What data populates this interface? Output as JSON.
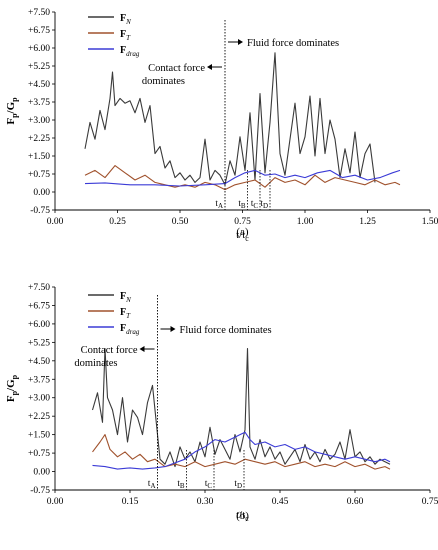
{
  "chart_data": [
    {
      "type": "line",
      "panel_label": "(a)",
      "ylabel": "Fp/Gp",
      "xlabel": "t/tc",
      "xlim": [
        0.0,
        1.5
      ],
      "ylim": [
        -0.75,
        7.5
      ],
      "xticks": [
        "0.00",
        "0.25",
        "0.50",
        "0.75",
        "1.00",
        "1.25",
        "1.50"
      ],
      "yticks": [
        "-0.75",
        "0.00",
        "+0.75",
        "+1.50",
        "+2.25",
        "+3.00",
        "+3.75",
        "+4.50",
        "+5.25",
        "+6.00",
        "+6.75",
        "+7.50"
      ],
      "legend_position": "top-left",
      "divider_x": 0.68,
      "annotations": {
        "left": "Contact force dominates",
        "right": "Fluid force dominates"
      },
      "markers": [
        {
          "label": "tA",
          "x": 0.68
        },
        {
          "label": "tB",
          "x": 0.77
        },
        {
          "label": "tC",
          "x": 0.82
        },
        {
          "label": "tD",
          "x": 0.86
        }
      ],
      "series": [
        {
          "name": "FN",
          "legend_sub": "N",
          "color": "#3a3a3a",
          "x": [
            0.12,
            0.14,
            0.16,
            0.18,
            0.2,
            0.22,
            0.23,
            0.24,
            0.26,
            0.28,
            0.3,
            0.32,
            0.34,
            0.36,
            0.38,
            0.4,
            0.42,
            0.44,
            0.46,
            0.48,
            0.5,
            0.52,
            0.54,
            0.56,
            0.58,
            0.6,
            0.62,
            0.64,
            0.66,
            0.68,
            0.7,
            0.72,
            0.74,
            0.76,
            0.78,
            0.8,
            0.82,
            0.84,
            0.86,
            0.88,
            0.9,
            0.92,
            0.94,
            0.96,
            0.98,
            1.0,
            1.02,
            1.04,
            1.06,
            1.08,
            1.1,
            1.12,
            1.14,
            1.16,
            1.18,
            1.2,
            1.22,
            1.24,
            1.26,
            1.28
          ],
          "y": [
            1.8,
            2.9,
            2.2,
            3.4,
            2.6,
            3.9,
            5.0,
            3.6,
            3.9,
            3.7,
            3.8,
            3.3,
            3.9,
            2.9,
            3.6,
            1.6,
            1.9,
            1.0,
            1.3,
            0.6,
            0.8,
            0.5,
            0.7,
            0.4,
            0.6,
            2.2,
            0.5,
            0.9,
            0.7,
            0.3,
            1.3,
            0.7,
            2.3,
            0.9,
            3.3,
            0.5,
            4.1,
            0.8,
            2.9,
            5.8,
            1.6,
            0.7,
            2.2,
            3.7,
            1.6,
            2.3,
            4.0,
            1.5,
            3.9,
            1.6,
            3.0,
            2.2,
            0.6,
            1.8,
            0.8,
            2.5,
            0.6,
            1.6,
            2.0,
            0.4
          ]
        },
        {
          "name": "FT",
          "legend_sub": "T",
          "color": "#a0522d",
          "x": [
            0.12,
            0.16,
            0.2,
            0.24,
            0.28,
            0.32,
            0.36,
            0.4,
            0.44,
            0.48,
            0.52,
            0.56,
            0.6,
            0.64,
            0.68,
            0.72,
            0.76,
            0.8,
            0.84,
            0.88,
            0.92,
            0.96,
            1.0,
            1.04,
            1.08,
            1.12,
            1.16,
            1.2,
            1.24,
            1.28,
            1.32,
            1.36,
            1.38
          ],
          "y": [
            0.7,
            0.9,
            0.6,
            1.1,
            0.8,
            0.5,
            0.7,
            0.4,
            0.3,
            0.2,
            0.3,
            0.2,
            0.4,
            0.3,
            0.1,
            0.3,
            0.4,
            0.5,
            0.2,
            0.6,
            0.4,
            0.5,
            0.3,
            0.7,
            0.4,
            0.6,
            0.5,
            0.4,
            0.3,
            0.5,
            0.3,
            0.4,
            0.3
          ]
        },
        {
          "name": "Fdrag",
          "legend_sub": "drag",
          "color": "#3b3bd6",
          "x": [
            0.12,
            0.2,
            0.3,
            0.4,
            0.5,
            0.6,
            0.68,
            0.72,
            0.76,
            0.8,
            0.84,
            0.88,
            0.92,
            0.96,
            1.0,
            1.05,
            1.1,
            1.15,
            1.2,
            1.25,
            1.3,
            1.35,
            1.38
          ],
          "y": [
            0.35,
            0.38,
            0.3,
            0.3,
            0.25,
            0.3,
            0.35,
            0.6,
            0.8,
            0.9,
            0.7,
            0.75,
            0.6,
            0.7,
            0.6,
            0.8,
            0.9,
            0.6,
            0.7,
            0.5,
            0.6,
            0.8,
            0.9
          ]
        }
      ]
    },
    {
      "type": "line",
      "panel_label": "(b)",
      "ylabel": "Fp/Gp",
      "xlabel": "t/tc",
      "xlim": [
        0.0,
        0.75
      ],
      "ylim": [
        -0.75,
        7.5
      ],
      "xticks": [
        "0.00",
        "0.15",
        "0.30",
        "0.45",
        "0.60",
        "0.75"
      ],
      "yticks": [
        "-0.75",
        "0.00",
        "+0.75",
        "+1.50",
        "+2.25",
        "+3.00",
        "+3.75",
        "+4.50",
        "+5.25",
        "+6.00",
        "+6.75",
        "+7.50"
      ],
      "legend_position": "top-left",
      "divider_x": 0.205,
      "annotations": {
        "left": "Contact force dominates",
        "right": "Fluid force dominates"
      },
      "markers": [
        {
          "label": "tA",
          "x": 0.205
        },
        {
          "label": "tB",
          "x": 0.263
        },
        {
          "label": "tC",
          "x": 0.318
        },
        {
          "label": "tD",
          "x": 0.378
        }
      ],
      "series": [
        {
          "name": "FN",
          "legend_sub": "N",
          "color": "#3a3a3a",
          "x": [
            0.075,
            0.085,
            0.095,
            0.1,
            0.105,
            0.115,
            0.125,
            0.135,
            0.145,
            0.155,
            0.165,
            0.175,
            0.185,
            0.195,
            0.2,
            0.21,
            0.22,
            0.23,
            0.24,
            0.25,
            0.26,
            0.27,
            0.28,
            0.29,
            0.3,
            0.31,
            0.32,
            0.33,
            0.34,
            0.35,
            0.36,
            0.37,
            0.38,
            0.385,
            0.39,
            0.4,
            0.41,
            0.42,
            0.43,
            0.44,
            0.45,
            0.46,
            0.47,
            0.48,
            0.49,
            0.5,
            0.51,
            0.52,
            0.53,
            0.54,
            0.55,
            0.56,
            0.57,
            0.58,
            0.59,
            0.6,
            0.61,
            0.62,
            0.63,
            0.64,
            0.65,
            0.66,
            0.67
          ],
          "y": [
            2.5,
            3.2,
            2.0,
            5.0,
            3.0,
            2.5,
            1.5,
            3.0,
            1.2,
            2.5,
            2.2,
            1.5,
            2.8,
            3.5,
            2.5,
            0.5,
            0.3,
            0.8,
            0.2,
            1.0,
            0.5,
            0.8,
            0.4,
            1.2,
            0.6,
            1.8,
            0.7,
            1.3,
            0.9,
            0.5,
            1.5,
            0.8,
            1.7,
            5.0,
            1.0,
            0.5,
            1.3,
            0.6,
            1.0,
            0.5,
            0.8,
            0.3,
            0.6,
            0.9,
            0.4,
            1.1,
            0.5,
            0.8,
            0.4,
            0.9,
            0.5,
            0.7,
            1.2,
            0.5,
            1.7,
            0.6,
            0.8,
            0.4,
            0.6,
            0.3,
            0.5,
            0.4,
            0.3
          ]
        },
        {
          "name": "FT",
          "legend_sub": "T",
          "color": "#a0522d",
          "x": [
            0.075,
            0.09,
            0.1,
            0.11,
            0.125,
            0.14,
            0.155,
            0.17,
            0.185,
            0.2,
            0.22,
            0.24,
            0.26,
            0.28,
            0.3,
            0.32,
            0.34,
            0.36,
            0.38,
            0.4,
            0.42,
            0.44,
            0.46,
            0.48,
            0.5,
            0.52,
            0.54,
            0.56,
            0.58,
            0.6,
            0.62,
            0.64,
            0.66,
            0.67
          ],
          "y": [
            0.8,
            1.2,
            1.5,
            0.9,
            0.6,
            0.8,
            0.5,
            0.7,
            0.4,
            0.5,
            0.2,
            0.3,
            0.2,
            0.4,
            0.2,
            0.3,
            0.4,
            0.3,
            0.5,
            0.4,
            0.3,
            0.4,
            0.2,
            0.3,
            0.4,
            0.2,
            0.3,
            0.2,
            0.4,
            0.2,
            0.3,
            0.1,
            0.2,
            0.1
          ]
        },
        {
          "name": "Fdrag",
          "legend_sub": "drag",
          "color": "#3b3bd6",
          "x": [
            0.075,
            0.1,
            0.125,
            0.15,
            0.175,
            0.2,
            0.22,
            0.24,
            0.26,
            0.28,
            0.3,
            0.32,
            0.34,
            0.36,
            0.37,
            0.38,
            0.39,
            0.4,
            0.42,
            0.44,
            0.46,
            0.48,
            0.5,
            0.52,
            0.54,
            0.56,
            0.58,
            0.6,
            0.62,
            0.64,
            0.66,
            0.67
          ],
          "y": [
            0.25,
            0.2,
            0.1,
            0.15,
            0.1,
            0.15,
            0.2,
            0.35,
            0.5,
            0.8,
            1.0,
            1.3,
            1.2,
            1.4,
            1.5,
            1.6,
            1.3,
            1.1,
            1.2,
            1.0,
            1.1,
            0.9,
            1.0,
            0.8,
            0.7,
            0.6,
            0.5,
            0.6,
            0.5,
            0.4,
            0.5,
            0.4
          ]
        }
      ]
    }
  ]
}
